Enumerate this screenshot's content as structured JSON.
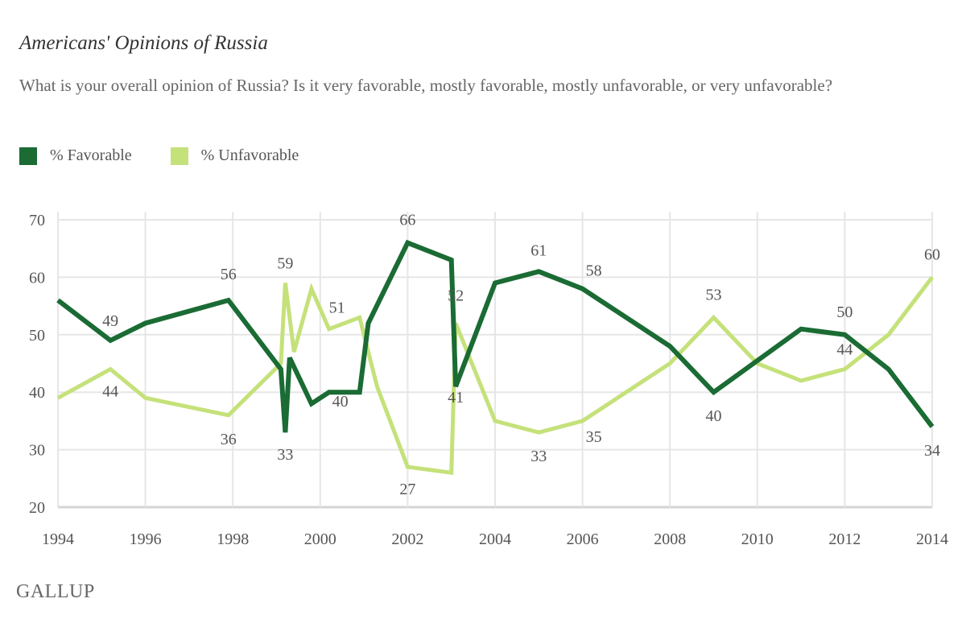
{
  "chart_data": {
    "type": "line",
    "title": "Americans' Opinions of Russia",
    "subtitle": "What is your overall opinion of Russia? Is it very favorable, mostly favorable, mostly unfavorable, or very unfavorable?",
    "xlabel": "",
    "ylabel": "",
    "xlim": [
      1994,
      2014
    ],
    "ylim": [
      20,
      70
    ],
    "x_ticks": [
      1994,
      1996,
      1998,
      2000,
      2002,
      2004,
      2006,
      2008,
      2010,
      2012,
      2014
    ],
    "y_ticks": [
      20,
      30,
      40,
      50,
      60,
      70
    ],
    "grid": true,
    "legend_position": "top-left",
    "series": [
      {
        "name": "% Favorable",
        "color": "#1a6b34",
        "points": [
          {
            "x": 1994.0,
            "y": 56
          },
          {
            "x": 1995.2,
            "y": 49,
            "label": "49"
          },
          {
            "x": 1996.0,
            "y": 52
          },
          {
            "x": 1997.9,
            "y": 56,
            "label": "56"
          },
          {
            "x": 1999.1,
            "y": 44
          },
          {
            "x": 1999.2,
            "y": 33,
            "label": "33"
          },
          {
            "x": 1999.3,
            "y": 46
          },
          {
            "x": 1999.8,
            "y": 38
          },
          {
            "x": 2000.2,
            "y": 40,
            "label": "40"
          },
          {
            "x": 2000.9,
            "y": 40
          },
          {
            "x": 2001.1,
            "y": 52
          },
          {
            "x": 2002.0,
            "y": 66,
            "label": "66"
          },
          {
            "x": 2003.0,
            "y": 63
          },
          {
            "x": 2003.1,
            "y": 41,
            "label": "41"
          },
          {
            "x": 2004.0,
            "y": 59
          },
          {
            "x": 2005.0,
            "y": 61,
            "label": "61"
          },
          {
            "x": 2006.0,
            "y": 58,
            "label": "58"
          },
          {
            "x": 2008.0,
            "y": 48
          },
          {
            "x": 2009.0,
            "y": 40,
            "label": "40"
          },
          {
            "x": 2011.0,
            "y": 51
          },
          {
            "x": 2012.0,
            "y": 50,
            "label": "50"
          },
          {
            "x": 2013.0,
            "y": 44
          },
          {
            "x": 2014.0,
            "y": 34,
            "label": "34"
          }
        ]
      },
      {
        "name": "% Unfavorable",
        "color": "#c5e17a",
        "points": [
          {
            "x": 1994.0,
            "y": 39
          },
          {
            "x": 1995.2,
            "y": 44,
            "label": "44"
          },
          {
            "x": 1996.0,
            "y": 39
          },
          {
            "x": 1997.9,
            "y": 36,
            "label": "36"
          },
          {
            "x": 1999.1,
            "y": 45
          },
          {
            "x": 1999.2,
            "y": 59,
            "label": "59"
          },
          {
            "x": 1999.4,
            "y": 47
          },
          {
            "x": 1999.8,
            "y": 58
          },
          {
            "x": 2000.2,
            "y": 51,
            "label": "51"
          },
          {
            "x": 2000.9,
            "y": 53
          },
          {
            "x": 2001.3,
            "y": 41
          },
          {
            "x": 2002.0,
            "y": 27,
            "label": "27"
          },
          {
            "x": 2003.0,
            "y": 26
          },
          {
            "x": 2003.1,
            "y": 52,
            "label": "52"
          },
          {
            "x": 2004.0,
            "y": 35
          },
          {
            "x": 2005.0,
            "y": 33,
            "label": "33"
          },
          {
            "x": 2006.0,
            "y": 35,
            "label": "35"
          },
          {
            "x": 2008.0,
            "y": 45
          },
          {
            "x": 2009.0,
            "y": 53,
            "label": "53"
          },
          {
            "x": 2010.0,
            "y": 45
          },
          {
            "x": 2011.0,
            "y": 42
          },
          {
            "x": 2012.0,
            "y": 44,
            "label": "44"
          },
          {
            "x": 2013.0,
            "y": 50
          },
          {
            "x": 2014.0,
            "y": 60,
            "label": "60"
          }
        ]
      }
    ],
    "source": "GALLUP"
  },
  "legend": {
    "favorable": "% Favorable",
    "unfavorable": "% Unfavorable"
  },
  "colors": {
    "favorable": "#1a6b34",
    "unfavorable": "#c5e17a",
    "grid": "#e6e6e6",
    "axis": "#d4d4d4"
  }
}
